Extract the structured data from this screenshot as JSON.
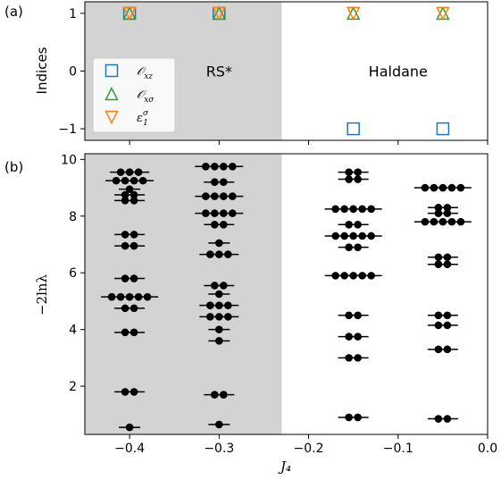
{
  "chart_data": [
    {
      "panel_label": "(a)",
      "type": "scatter",
      "ylabel": "Indices",
      "xlim": [
        -0.45,
        0.0
      ],
      "ylim": [
        -1.2,
        1.2
      ],
      "yticks": [
        "1",
        "0",
        "−1"
      ],
      "ytick_values": [
        1,
        0,
        -1
      ],
      "shaded_region": [
        -0.45,
        -0.23
      ],
      "region_labels": [
        {
          "text": "RS*",
          "x": -0.3,
          "y": 0
        },
        {
          "text": "Haldane",
          "x": -0.1,
          "y": 0
        }
      ],
      "legend_position": "left-center",
      "series": [
        {
          "name": "𝒪_{xz}",
          "label_main": "𝒪",
          "label_sub": "xz",
          "label_sup": "",
          "marker": "square",
          "color": "#1f77b4",
          "x": [
            -0.4,
            -0.3,
            -0.15,
            -0.05
          ],
          "y": [
            1,
            1,
            -1,
            -1
          ]
        },
        {
          "name": "𝒪_{xσ}",
          "label_main": "𝒪",
          "label_sub": "xσ",
          "label_sup": "",
          "marker": "triangle-up",
          "color": "#2ca02c",
          "x": [
            -0.4,
            -0.3,
            -0.15,
            -0.05
          ],
          "y": [
            1,
            1,
            1,
            1
          ]
        },
        {
          "name": "ε_1^σ",
          "label_main": "ε",
          "label_sub": "1",
          "label_sup": "σ",
          "marker": "triangle-down",
          "color": "#ff7f0e",
          "x": [
            -0.4,
            -0.3,
            -0.15,
            -0.05
          ],
          "y": [
            1,
            1,
            1,
            1
          ]
        }
      ]
    },
    {
      "panel_label": "(b)",
      "type": "scatter",
      "xlabel": "J₄",
      "ylabel": "−2lnλ",
      "xlim": [
        -0.45,
        0.0
      ],
      "ylim": [
        0.3,
        10.2
      ],
      "xticks": [
        "−0.4",
        "−0.3",
        "−0.2",
        "−0.1",
        "0.0"
      ],
      "xtick_values": [
        -0.4,
        -0.3,
        -0.2,
        -0.1,
        0.0
      ],
      "yticks": [
        "2",
        "4",
        "6",
        "8",
        "10"
      ],
      "ytick_values": [
        2,
        4,
        6,
        8,
        10
      ],
      "shaded_region": [
        -0.45,
        -0.23
      ],
      "columns": [
        {
          "x": -0.4,
          "levels": [
            {
              "y": 9.55,
              "n": 3
            },
            {
              "y": 9.25,
              "n": 4
            },
            {
              "y": 8.95,
              "n": 1
            },
            {
              "y": 8.75,
              "n": 2
            },
            {
              "y": 8.55,
              "n": 2
            },
            {
              "y": 7.35,
              "n": 2
            },
            {
              "y": 6.95,
              "n": 2
            },
            {
              "y": 5.8,
              "n": 2
            },
            {
              "y": 5.15,
              "n": 5
            },
            {
              "y": 4.75,
              "n": 2
            },
            {
              "y": 3.9,
              "n": 2
            },
            {
              "y": 1.8,
              "n": 2
            },
            {
              "y": 0.55,
              "n": 1
            }
          ]
        },
        {
          "x": -0.3,
          "levels": [
            {
              "y": 9.75,
              "n": 4
            },
            {
              "y": 9.2,
              "n": 2
            },
            {
              "y": 8.7,
              "n": 4
            },
            {
              "y": 8.1,
              "n": 4
            },
            {
              "y": 7.7,
              "n": 2
            },
            {
              "y": 7.05,
              "n": 1
            },
            {
              "y": 6.65,
              "n": 3
            },
            {
              "y": 5.55,
              "n": 2
            },
            {
              "y": 5.25,
              "n": 1
            },
            {
              "y": 4.85,
              "n": 3
            },
            {
              "y": 4.45,
              "n": 3
            },
            {
              "y": 4.0,
              "n": 1
            },
            {
              "y": 3.6,
              "n": 1
            },
            {
              "y": 1.7,
              "n": 2
            },
            {
              "y": 0.65,
              "n": 1
            }
          ]
        },
        {
          "x": -0.15,
          "levels": [
            {
              "y": 9.55,
              "n": 2
            },
            {
              "y": 9.3,
              "n": 2
            },
            {
              "y": 8.25,
              "n": 5
            },
            {
              "y": 7.7,
              "n": 2
            },
            {
              "y": 7.3,
              "n": 5
            },
            {
              "y": 6.9,
              "n": 2
            },
            {
              "y": 5.9,
              "n": 5
            },
            {
              "y": 4.5,
              "n": 2
            },
            {
              "y": 3.75,
              "n": 2
            },
            {
              "y": 3.0,
              "n": 2
            },
            {
              "y": 0.9,
              "n": 2
            }
          ]
        },
        {
          "x": -0.05,
          "levels": [
            {
              "y": 9.0,
              "n": 5
            },
            {
              "y": 8.3,
              "n": 2
            },
            {
              "y": 8.1,
              "n": 2
            },
            {
              "y": 7.8,
              "n": 5
            },
            {
              "y": 6.55,
              "n": 2
            },
            {
              "y": 6.3,
              "n": 2
            },
            {
              "y": 4.5,
              "n": 2
            },
            {
              "y": 4.15,
              "n": 2
            },
            {
              "y": 3.3,
              "n": 2
            },
            {
              "y": 0.85,
              "n": 2
            }
          ]
        }
      ]
    }
  ]
}
